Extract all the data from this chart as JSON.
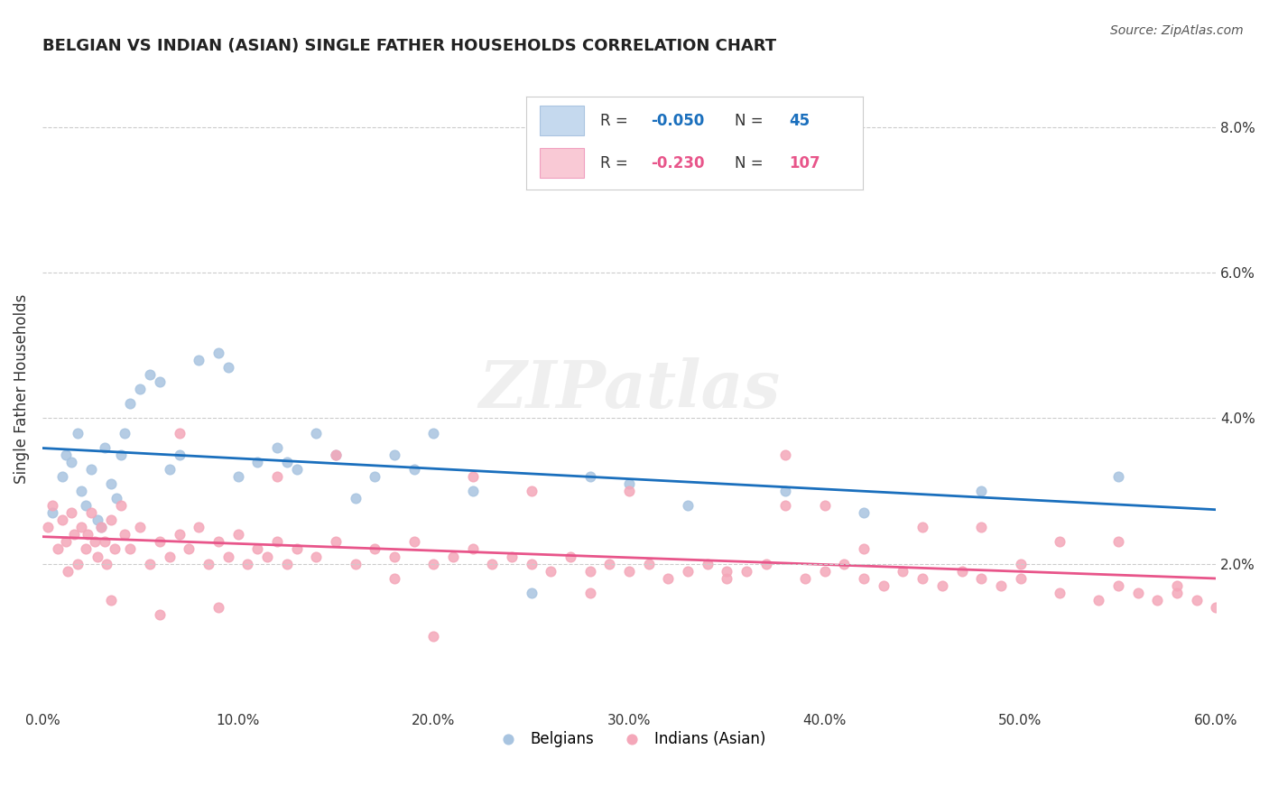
{
  "title": "BELGIAN VS INDIAN (ASIAN) SINGLE FATHER HOUSEHOLDS CORRELATION CHART",
  "source": "Source: ZipAtlas.com",
  "ylabel": "Single Father Households",
  "xlabel_ticks": [
    "0.0%",
    "10.0%",
    "20.0%",
    "30.0%",
    "40.0%",
    "50.0%",
    "60.0%"
  ],
  "xlabel_vals": [
    0,
    10,
    20,
    30,
    40,
    50,
    60
  ],
  "ytick_labels": [
    "2.0%",
    "4.0%",
    "6.0%",
    "8.0%"
  ],
  "ytick_vals": [
    2.0,
    4.0,
    6.0,
    8.0
  ],
  "xlim": [
    0,
    60
  ],
  "ylim": [
    0,
    8.8
  ],
  "belgian_color": "#a8c4e0",
  "indian_color": "#f4a7b9",
  "belgian_line_color": "#1a6fbd",
  "indian_line_color": "#e8558a",
  "legend_box_color_belgian": "#c5d9ee",
  "legend_box_color_indian": "#f9c9d5",
  "R_belgian": -0.05,
  "N_belgian": 45,
  "R_indian": -0.23,
  "N_indian": 107,
  "watermark": "ZIPatlas",
  "background_color": "#ffffff",
  "grid_color": "#cccccc",
  "belgian_scatter_x": [
    0.5,
    1.0,
    1.2,
    1.5,
    1.8,
    2.0,
    2.2,
    2.5,
    2.8,
    3.0,
    3.2,
    3.5,
    3.8,
    4.0,
    4.2,
    4.5,
    5.0,
    5.5,
    6.0,
    6.5,
    7.0,
    8.0,
    9.0,
    9.5,
    10.0,
    11.0,
    12.0,
    12.5,
    13.0,
    14.0,
    15.0,
    16.0,
    17.0,
    18.0,
    19.0,
    20.0,
    22.0,
    25.0,
    28.0,
    30.0,
    33.0,
    38.0,
    42.0,
    48.0,
    55.0
  ],
  "belgian_scatter_y": [
    2.7,
    3.2,
    3.5,
    3.4,
    3.8,
    3.0,
    2.8,
    3.3,
    2.6,
    2.5,
    3.6,
    3.1,
    2.9,
    3.5,
    3.8,
    4.2,
    4.4,
    4.6,
    4.5,
    3.3,
    3.5,
    4.8,
    4.9,
    4.7,
    3.2,
    3.4,
    3.6,
    3.4,
    3.3,
    3.8,
    3.5,
    2.9,
    3.2,
    3.5,
    3.3,
    3.8,
    3.0,
    1.6,
    3.2,
    3.1,
    2.8,
    3.0,
    2.7,
    3.0,
    3.2
  ],
  "indian_scatter_x": [
    0.3,
    0.5,
    0.8,
    1.0,
    1.2,
    1.3,
    1.5,
    1.6,
    1.8,
    2.0,
    2.2,
    2.3,
    2.5,
    2.7,
    2.8,
    3.0,
    3.2,
    3.3,
    3.5,
    3.7,
    4.0,
    4.2,
    4.5,
    5.0,
    5.5,
    6.0,
    6.5,
    7.0,
    7.5,
    8.0,
    8.5,
    9.0,
    9.5,
    10.0,
    10.5,
    11.0,
    11.5,
    12.0,
    12.5,
    13.0,
    14.0,
    15.0,
    16.0,
    17.0,
    18.0,
    19.0,
    20.0,
    21.0,
    22.0,
    23.0,
    24.0,
    25.0,
    26.0,
    27.0,
    28.0,
    29.0,
    30.0,
    31.0,
    32.0,
    33.0,
    34.0,
    35.0,
    36.0,
    37.0,
    38.0,
    39.0,
    40.0,
    41.0,
    42.0,
    43.0,
    44.0,
    45.0,
    46.0,
    47.0,
    48.0,
    49.0,
    50.0,
    52.0,
    54.0,
    55.0,
    56.0,
    57.0,
    58.0,
    59.0,
    60.0,
    12.0,
    25.0,
    38.0,
    45.0,
    52.0,
    7.0,
    15.0,
    22.0,
    30.0,
    40.0,
    48.0,
    55.0,
    3.5,
    6.0,
    9.0,
    18.0,
    28.0,
    35.0,
    42.0,
    50.0,
    58.0,
    20.0
  ],
  "indian_scatter_y": [
    2.5,
    2.8,
    2.2,
    2.6,
    2.3,
    1.9,
    2.7,
    2.4,
    2.0,
    2.5,
    2.2,
    2.4,
    2.7,
    2.3,
    2.1,
    2.5,
    2.3,
    2.0,
    2.6,
    2.2,
    2.8,
    2.4,
    2.2,
    2.5,
    2.0,
    2.3,
    2.1,
    2.4,
    2.2,
    2.5,
    2.0,
    2.3,
    2.1,
    2.4,
    2.0,
    2.2,
    2.1,
    2.3,
    2.0,
    2.2,
    2.1,
    2.3,
    2.0,
    2.2,
    2.1,
    2.3,
    2.0,
    2.1,
    2.2,
    2.0,
    2.1,
    2.0,
    1.9,
    2.1,
    1.9,
    2.0,
    1.9,
    2.0,
    1.8,
    1.9,
    2.0,
    1.8,
    1.9,
    2.0,
    3.5,
    1.8,
    1.9,
    2.0,
    1.8,
    1.7,
    1.9,
    1.8,
    1.7,
    1.9,
    1.8,
    1.7,
    1.8,
    1.6,
    1.5,
    1.7,
    1.6,
    1.5,
    1.6,
    1.5,
    1.4,
    3.2,
    3.0,
    2.8,
    2.5,
    2.3,
    3.8,
    3.5,
    3.2,
    3.0,
    2.8,
    2.5,
    2.3,
    1.5,
    1.3,
    1.4,
    1.8,
    1.6,
    1.9,
    2.2,
    2.0,
    1.7,
    1.0
  ]
}
